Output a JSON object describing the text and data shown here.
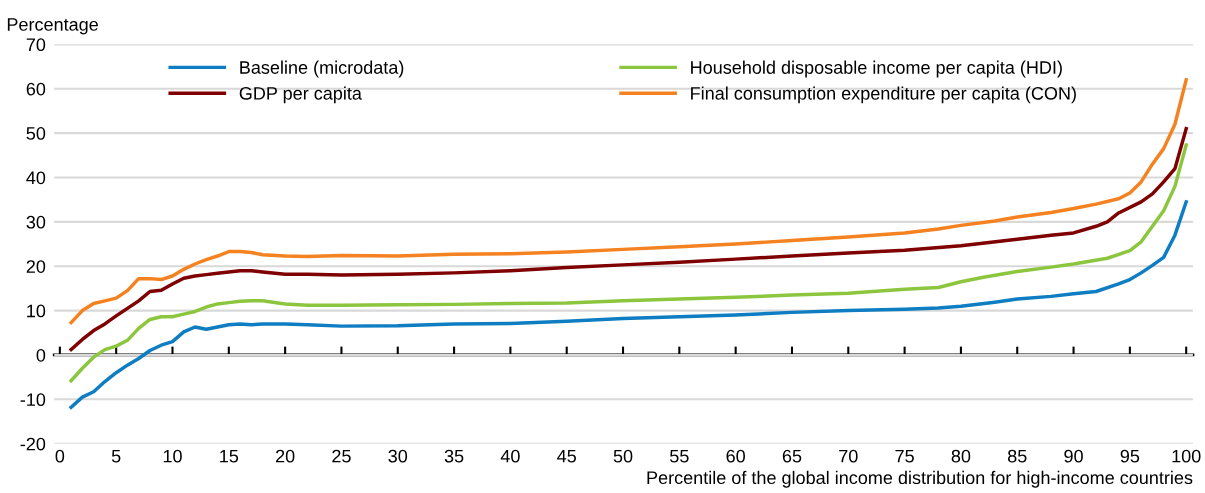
{
  "chart_data": {
    "type": "line",
    "ylabel": "Percentage",
    "xlabel": "Percentile of the global income distribution for high-income countries",
    "xlim": [
      -0.5,
      100.6
    ],
    "xticks": [
      0,
      5,
      10,
      15,
      20,
      25,
      30,
      35,
      40,
      45,
      50,
      55,
      60,
      65,
      70,
      75,
      80,
      85,
      90,
      95,
      100
    ],
    "ylim": [
      -20,
      70
    ],
    "yticks": [
      -20,
      -10,
      0,
      10,
      20,
      30,
      40,
      50,
      60,
      70
    ],
    "grid": "y",
    "legend": "top",
    "marker": "none",
    "line_style": "solid",
    "series": [
      {
        "name": "Baseline (microdata)",
        "color": "#0f7dc2",
        "x": [
          1,
          2,
          3,
          4,
          5,
          6,
          7,
          8,
          9,
          10,
          11,
          12,
          13,
          14,
          15,
          16,
          17,
          18,
          20,
          22,
          25,
          30,
          35,
          40,
          45,
          50,
          55,
          60,
          65,
          70,
          75,
          78,
          80,
          83,
          85,
          88,
          90,
          92,
          94,
          95,
          96,
          97,
          98,
          99,
          100
        ],
        "values": [
          -11.8,
          -9.5,
          -8.3,
          -6,
          -4,
          -2.3,
          -0.8,
          1,
          2.2,
          3,
          5.2,
          6.3,
          5.8,
          6.3,
          6.8,
          7,
          6.8,
          7,
          7,
          6.8,
          6.5,
          6.6,
          7,
          7.1,
          7.6,
          8.2,
          8.6,
          9,
          9.6,
          10,
          10.3,
          10.6,
          11,
          11.9,
          12.6,
          13.2,
          13.8,
          14.3,
          16,
          17,
          18.5,
          20.2,
          22,
          27,
          34.5
        ]
      },
      {
        "name": "Household disposable income per capita (HDI)",
        "color": "#8cc63f",
        "x": [
          1,
          2,
          3,
          4,
          5,
          6,
          7,
          8,
          9,
          10,
          11,
          12,
          13,
          14,
          15,
          16,
          17,
          18,
          20,
          22,
          25,
          30,
          35,
          40,
          45,
          50,
          55,
          60,
          65,
          70,
          75,
          78,
          80,
          82,
          85,
          88,
          90,
          93,
          95,
          96,
          97,
          98,
          99,
          100
        ],
        "values": [
          -5.8,
          -3,
          -0.5,
          1.2,
          2,
          3.3,
          6,
          8,
          8.6,
          8.6,
          9.2,
          9.8,
          10.8,
          11.5,
          11.8,
          12.1,
          12.2,
          12.2,
          11.5,
          11.2,
          11.2,
          11.3,
          11.4,
          11.6,
          11.7,
          12.2,
          12.6,
          13,
          13.5,
          13.9,
          14.8,
          15.2,
          16.5,
          17.5,
          18.8,
          19.8,
          20.5,
          21.8,
          23.5,
          25.5,
          29,
          32.5,
          38,
          47.3
        ]
      },
      {
        "name": "GDP per capita",
        "color": "#7f0000",
        "x": [
          1,
          2,
          3,
          4,
          5,
          6,
          7,
          8,
          9,
          10,
          11,
          12,
          13,
          14,
          15,
          16,
          17,
          18,
          20,
          22,
          25,
          30,
          35,
          40,
          45,
          50,
          55,
          60,
          65,
          70,
          75,
          80,
          85,
          88,
          90,
          92,
          93,
          94,
          96,
          97,
          98,
          99,
          100
        ],
        "values": [
          1.2,
          3.5,
          5.5,
          7,
          8.8,
          10.5,
          12.2,
          14.3,
          14.6,
          16,
          17.3,
          17.8,
          18.1,
          18.4,
          18.7,
          19,
          19,
          18.7,
          18.2,
          18.2,
          18,
          18.2,
          18.5,
          19,
          19.7,
          20.3,
          20.9,
          21.6,
          22.3,
          23,
          23.6,
          24.6,
          26.1,
          27,
          27.5,
          29,
          30,
          32,
          34.5,
          36.3,
          39,
          42,
          51
        ]
      },
      {
        "name": "Final consumption expenditure per capita (CON)",
        "color": "#f58220",
        "x": [
          1,
          2,
          3,
          4,
          5,
          6,
          7,
          8,
          9,
          10,
          11,
          12,
          13,
          14,
          15,
          16,
          17,
          18,
          20,
          22,
          25,
          30,
          35,
          40,
          45,
          50,
          55,
          60,
          65,
          70,
          75,
          78,
          80,
          83,
          85,
          88,
          90,
          92,
          94,
          95,
          96,
          97,
          98,
          99,
          100
        ],
        "values": [
          7.3,
          10,
          11.6,
          12.2,
          12.8,
          14.5,
          17.2,
          17.2,
          17,
          17.8,
          19.3,
          20.5,
          21.5,
          22.3,
          23.3,
          23.3,
          23.1,
          22.6,
          22.3,
          22.2,
          22.4,
          22.3,
          22.7,
          22.8,
          23.2,
          23.8,
          24.4,
          25,
          25.8,
          26.6,
          27.5,
          28.4,
          29.2,
          30.2,
          31.1,
          32.1,
          33,
          34,
          35.2,
          36.5,
          39,
          43,
          46.5,
          52,
          62
        ]
      }
    ]
  }
}
